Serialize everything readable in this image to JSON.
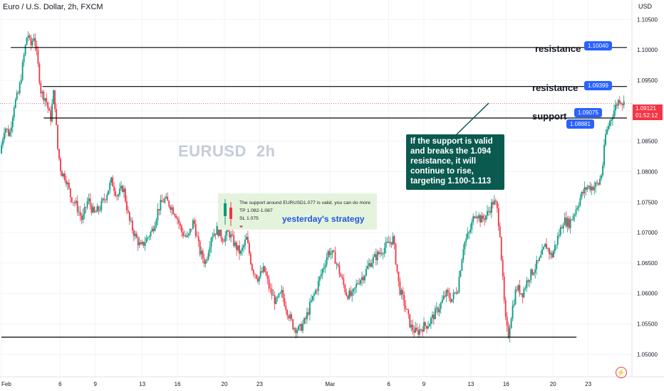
{
  "header": {
    "symbol_title": "Euro / U.S. Dollar, 2h, FXCM",
    "currency": "USD"
  },
  "watermark": {
    "symbol": "EURUSD",
    "interval": "2h"
  },
  "price_tag": {
    "price": "1.09121",
    "countdown": "01:52:12"
  },
  "colors": {
    "up": "#089981",
    "down": "#f23645",
    "tag": "#2962ff",
    "callout_bg": "#0b5a4f"
  },
  "chart_data": {
    "type": "candlestick",
    "y_axis": {
      "min": 1.047,
      "max": 1.1075,
      "ticks": [
        "1.10500",
        "1.10000",
        "1.09500",
        "1.09000",
        "1.08500",
        "1.08000",
        "1.07500",
        "1.07000",
        "1.06500",
        "1.06000",
        "1.05500",
        "1.05000"
      ],
      "position": "right"
    },
    "x_axis": {
      "labels": [
        {
          "label": "Feb",
          "day": 0
        },
        {
          "label": "6",
          "day": 5
        },
        {
          "label": "9",
          "day": 8
        },
        {
          "label": "13",
          "day": 12
        },
        {
          "label": "16",
          "day": 15
        },
        {
          "label": "20",
          "day": 19
        },
        {
          "label": "23",
          "day": 22
        },
        {
          "label": "Mar",
          "day": 28
        },
        {
          "label": "6",
          "day": 33
        },
        {
          "label": "9",
          "day": 36
        },
        {
          "label": "13",
          "day": 40
        },
        {
          "label": "16",
          "day": 43
        },
        {
          "label": "20",
          "day": 47
        },
        {
          "label": "23",
          "day": 50
        }
      ],
      "end_day": 53.3
    },
    "path": [
      {
        "day": 0,
        "price": 1.083
      },
      {
        "day": 0.4,
        "price": 1.0875
      },
      {
        "day": 0.8,
        "price": 1.086
      },
      {
        "day": 1.2,
        "price": 1.091
      },
      {
        "day": 1.6,
        "price": 1.093
      },
      {
        "day": 2.0,
        "price": 1.0985
      },
      {
        "day": 2.35,
        "price": 1.103
      },
      {
        "day": 2.6,
        "price": 1.1005
      },
      {
        "day": 2.9,
        "price": 1.1025
      },
      {
        "day": 3.2,
        "price": 1.098
      },
      {
        "day": 3.5,
        "price": 1.093
      },
      {
        "day": 3.9,
        "price": 1.092
      },
      {
        "day": 4.3,
        "price": 1.0885
      },
      {
        "day": 4.6,
        "price": 1.0935
      },
      {
        "day": 4.9,
        "price": 1.084
      },
      {
        "day": 5.2,
        "price": 1.08
      },
      {
        "day": 5.6,
        "price": 1.079
      },
      {
        "day": 6.0,
        "price": 1.076
      },
      {
        "day": 6.5,
        "price": 1.0745
      },
      {
        "day": 7.0,
        "price": 1.072
      },
      {
        "day": 7.5,
        "price": 1.0755
      },
      {
        "day": 8.0,
        "price": 1.073
      },
      {
        "day": 8.5,
        "price": 1.074
      },
      {
        "day": 9.0,
        "price": 1.076
      },
      {
        "day": 9.5,
        "price": 1.0785
      },
      {
        "day": 10.0,
        "price": 1.076
      },
      {
        "day": 10.5,
        "price": 1.0775
      },
      {
        "day": 11.0,
        "price": 1.072
      },
      {
        "day": 11.5,
        "price": 1.0695
      },
      {
        "day": 12.0,
        "price": 1.0675
      },
      {
        "day": 12.5,
        "price": 1.069
      },
      {
        "day": 13.0,
        "price": 1.0705
      },
      {
        "day": 13.5,
        "price": 1.074
      },
      {
        "day": 14.0,
        "price": 1.0755
      },
      {
        "day": 14.5,
        "price": 1.0745
      },
      {
        "day": 15.0,
        "price": 1.073
      },
      {
        "day": 15.5,
        "price": 1.07
      },
      {
        "day": 16.0,
        "price": 1.069
      },
      {
        "day": 16.5,
        "price": 1.072
      },
      {
        "day": 17.0,
        "price": 1.067
      },
      {
        "day": 17.5,
        "price": 1.065
      },
      {
        "day": 18.0,
        "price": 1.0695
      },
      {
        "day": 18.5,
        "price": 1.0705
      },
      {
        "day": 19.0,
        "price": 1.069
      },
      {
        "day": 19.5,
        "price": 1.07
      },
      {
        "day": 20.0,
        "price": 1.068
      },
      {
        "day": 20.5,
        "price": 1.0665
      },
      {
        "day": 21.0,
        "price": 1.069
      },
      {
        "day": 21.5,
        "price": 1.064
      },
      {
        "day": 22.0,
        "price": 1.0625
      },
      {
        "day": 22.5,
        "price": 1.064
      },
      {
        "day": 23.0,
        "price": 1.0605
      },
      {
        "day": 23.5,
        "price": 1.0585
      },
      {
        "day": 24.0,
        "price": 1.06
      },
      {
        "day": 24.5,
        "price": 1.057
      },
      {
        "day": 25.0,
        "price": 1.0545
      },
      {
        "day": 25.5,
        "price": 1.054
      },
      {
        "day": 26.0,
        "price": 1.0555
      },
      {
        "day": 26.5,
        "price": 1.0585
      },
      {
        "day": 27.0,
        "price": 1.061
      },
      {
        "day": 27.5,
        "price": 1.064
      },
      {
        "day": 28.0,
        "price": 1.067
      },
      {
        "day": 28.5,
        "price": 1.066
      },
      {
        "day": 29.0,
        "price": 1.063
      },
      {
        "day": 29.5,
        "price": 1.06
      },
      {
        "day": 30.0,
        "price": 1.0595
      },
      {
        "day": 30.5,
        "price": 1.062
      },
      {
        "day": 31.0,
        "price": 1.063
      },
      {
        "day": 31.5,
        "price": 1.065
      },
      {
        "day": 32.0,
        "price": 1.066
      },
      {
        "day": 32.5,
        "price": 1.067
      },
      {
        "day": 33.0,
        "price": 1.068
      },
      {
        "day": 33.5,
        "price": 1.069
      },
      {
        "day": 34.0,
        "price": 1.061
      },
      {
        "day": 34.5,
        "price": 1.058
      },
      {
        "day": 35.0,
        "price": 1.0545
      },
      {
        "day": 35.5,
        "price": 1.0535
      },
      {
        "day": 36.0,
        "price": 1.0545
      },
      {
        "day": 36.5,
        "price": 1.055
      },
      {
        "day": 37.0,
        "price": 1.0565
      },
      {
        "day": 37.5,
        "price": 1.058
      },
      {
        "day": 38.0,
        "price": 1.06
      },
      {
        "day": 38.5,
        "price": 1.059
      },
      {
        "day": 39.0,
        "price": 1.061
      },
      {
        "day": 39.5,
        "price": 1.068
      },
      {
        "day": 40.0,
        "price": 1.07
      },
      {
        "day": 40.5,
        "price": 1.0735
      },
      {
        "day": 41.0,
        "price": 1.072
      },
      {
        "day": 41.5,
        "price": 1.073
      },
      {
        "day": 42.0,
        "price": 1.075
      },
      {
        "day": 42.3,
        "price": 1.0745
      },
      {
        "day": 42.6,
        "price": 1.07
      },
      {
        "day": 42.9,
        "price": 1.06
      },
      {
        "day": 43.1,
        "price": 1.055
      },
      {
        "day": 43.3,
        "price": 1.053
      },
      {
        "day": 43.6,
        "price": 1.057
      },
      {
        "day": 44.0,
        "price": 1.061
      },
      {
        "day": 44.5,
        "price": 1.06
      },
      {
        "day": 45.0,
        "price": 1.0625
      },
      {
        "day": 45.5,
        "price": 1.064
      },
      {
        "day": 46.0,
        "price": 1.0655
      },
      {
        "day": 46.5,
        "price": 1.068
      },
      {
        "day": 47.0,
        "price": 1.066
      },
      {
        "day": 47.5,
        "price": 1.069
      },
      {
        "day": 48.0,
        "price": 1.072
      },
      {
        "day": 48.5,
        "price": 1.0715
      },
      {
        "day": 49.0,
        "price": 1.0735
      },
      {
        "day": 49.5,
        "price": 1.076
      },
      {
        "day": 50.0,
        "price": 1.0775
      },
      {
        "day": 50.5,
        "price": 1.0775
      },
      {
        "day": 51.0,
        "price": 1.078
      },
      {
        "day": 51.3,
        "price": 1.08
      },
      {
        "day": 51.6,
        "price": 1.086
      },
      {
        "day": 51.9,
        "price": 1.088
      },
      {
        "day": 52.2,
        "price": 1.0895
      },
      {
        "day": 52.5,
        "price": 1.091
      },
      {
        "day": 52.8,
        "price": 1.092
      },
      {
        "day": 53.1,
        "price": 1.0912
      }
    ],
    "levels": [
      {
        "name": "resistance-upper",
        "price": 1.1004,
        "from_day": 0.8,
        "to_day": 53.3
      },
      {
        "name": "resistance-lower",
        "price": 1.09399,
        "from_day": 3.5,
        "to_day": 53.3
      },
      {
        "name": "support",
        "price": 1.08881,
        "from_day": 3.6,
        "to_day": 53.3
      },
      {
        "name": "low-line",
        "price": 1.05281,
        "from_day": 0,
        "to_day": 49.0
      }
    ],
    "current_price": 1.09121
  },
  "annotations": {
    "resistance_upper": {
      "label": "resistance",
      "tag": "1.10040"
    },
    "resistance_lower": {
      "label": "resistance",
      "tag": "1.09399"
    },
    "support": {
      "label": "support",
      "tag_mid": "1.09075",
      "tag_low": "1.08881"
    },
    "callout": {
      "text": "If the support is valid and breaks the 1.094 resistance, it will continue to rise, targeting 1.100-1.113"
    }
  },
  "inset": {
    "line1": "The support around EURUSD1.077 is valid. you can do more",
    "line2": "TP 1.082-1.087",
    "line3": "SL 1.075",
    "overlay": "yesterday's strategy"
  }
}
